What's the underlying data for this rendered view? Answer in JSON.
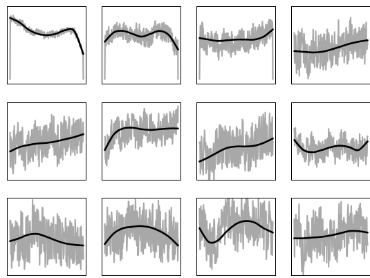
{
  "colors": {
    "noise": "#a8a8a8",
    "trend": "#000000",
    "frame": "#000000",
    "background": "#ffffff"
  },
  "chart_data": [
    {
      "type": "line",
      "series": [
        {
          "role": "noisy-signal",
          "level": 0.7,
          "amp": 0.06,
          "drop": true
        },
        {
          "role": "smooth-trend",
          "y": [
            0.88,
            0.82,
            0.72,
            0.66,
            0.64,
            0.66,
            0.71,
            0.7,
            0.38
          ]
        }
      ],
      "ylim": [
        0,
        1
      ],
      "grid": false
    },
    {
      "type": "line",
      "series": [
        {
          "role": "noisy-signal",
          "level": 0.6,
          "amp": 0.17,
          "drop": true
        },
        {
          "role": "smooth-trend",
          "y": [
            0.55,
            0.68,
            0.7,
            0.66,
            0.62,
            0.66,
            0.7,
            0.64,
            0.44
          ]
        }
      ],
      "ylim": [
        0,
        1
      ],
      "grid": false
    },
    {
      "type": "line",
      "series": [
        {
          "role": "noisy-signal",
          "level": 0.57,
          "amp": 0.22,
          "drop": true
        },
        {
          "role": "smooth-trend",
          "y": [
            0.6,
            0.58,
            0.56,
            0.57,
            0.58,
            0.58,
            0.58,
            0.62,
            0.72
          ]
        }
      ],
      "ylim": [
        0,
        1
      ],
      "grid": false
    },
    {
      "type": "line",
      "series": [
        {
          "role": "noisy-signal",
          "level": 0.48,
          "amp": 0.36,
          "drop": false
        },
        {
          "role": "smooth-trend",
          "y": [
            0.42,
            0.41,
            0.4,
            0.41,
            0.44,
            0.48,
            0.52,
            0.55,
            0.57
          ]
        }
      ],
      "ylim": [
        0,
        1
      ],
      "grid": false
    },
    {
      "type": "line",
      "series": [
        {
          "role": "noisy-signal",
          "level": 0.45,
          "amp": 0.38,
          "drop": false
        },
        {
          "role": "smooth-trend",
          "y": [
            0.36,
            0.42,
            0.45,
            0.47,
            0.48,
            0.5,
            0.53,
            0.56,
            0.6
          ]
        }
      ],
      "ylim": [
        0,
        1
      ],
      "grid": false
    },
    {
      "type": "line",
      "series": [
        {
          "role": "noisy-signal",
          "level": 0.6,
          "amp": 0.28,
          "drop": false
        },
        {
          "role": "smooth-trend",
          "y": [
            0.38,
            0.6,
            0.68,
            0.69,
            0.67,
            0.66,
            0.67,
            0.68,
            0.68
          ]
        }
      ],
      "ylim": [
        0,
        1
      ],
      "grid": false
    },
    {
      "type": "line",
      "series": [
        {
          "role": "noisy-signal",
          "level": 0.4,
          "amp": 0.4,
          "drop": false
        },
        {
          "role": "smooth-trend",
          "y": [
            0.22,
            0.28,
            0.35,
            0.41,
            0.43,
            0.43,
            0.44,
            0.48,
            0.54
          ]
        }
      ],
      "ylim": [
        0,
        1
      ],
      "grid": false
    },
    {
      "type": "line",
      "series": [
        {
          "role": "noisy-signal",
          "level": 0.35,
          "amp": 0.25,
          "drop": false
        },
        {
          "role": "smooth-trend",
          "y": [
            0.52,
            0.38,
            0.35,
            0.38,
            0.42,
            0.44,
            0.42,
            0.38,
            0.5
          ]
        }
      ],
      "ylim": [
        0,
        1
      ],
      "grid": false
    },
    {
      "type": "line",
      "series": [
        {
          "role": "noisy-signal",
          "level": 0.45,
          "amp": 0.45,
          "drop": false
        },
        {
          "role": "smooth-trend",
          "y": [
            0.44,
            0.48,
            0.53,
            0.54,
            0.5,
            0.45,
            0.41,
            0.39,
            0.38
          ]
        }
      ],
      "ylim": [
        0,
        1
      ],
      "grid": false
    },
    {
      "type": "line",
      "series": [
        {
          "role": "noisy-signal",
          "level": 0.58,
          "amp": 0.45,
          "drop": false
        },
        {
          "role": "smooth-trend",
          "y": [
            0.4,
            0.55,
            0.62,
            0.64,
            0.65,
            0.63,
            0.58,
            0.5,
            0.38
          ]
        }
      ],
      "ylim": [
        0,
        1
      ],
      "grid": false
    },
    {
      "type": "line",
      "series": [
        {
          "role": "noisy-signal",
          "level": 0.52,
          "amp": 0.45,
          "drop": false
        },
        {
          "role": "smooth-trend",
          "y": [
            0.62,
            0.43,
            0.45,
            0.58,
            0.68,
            0.72,
            0.7,
            0.62,
            0.56
          ]
        }
      ],
      "ylim": [
        0,
        1
      ],
      "grid": false
    },
    {
      "type": "line",
      "series": [
        {
          "role": "noisy-signal",
          "level": 0.5,
          "amp": 0.45,
          "drop": false
        },
        {
          "role": "smooth-trend",
          "y": [
            0.48,
            0.48,
            0.49,
            0.5,
            0.52,
            0.55,
            0.58,
            0.58,
            0.56
          ]
        }
      ],
      "ylim": [
        0,
        1
      ],
      "grid": false
    }
  ]
}
